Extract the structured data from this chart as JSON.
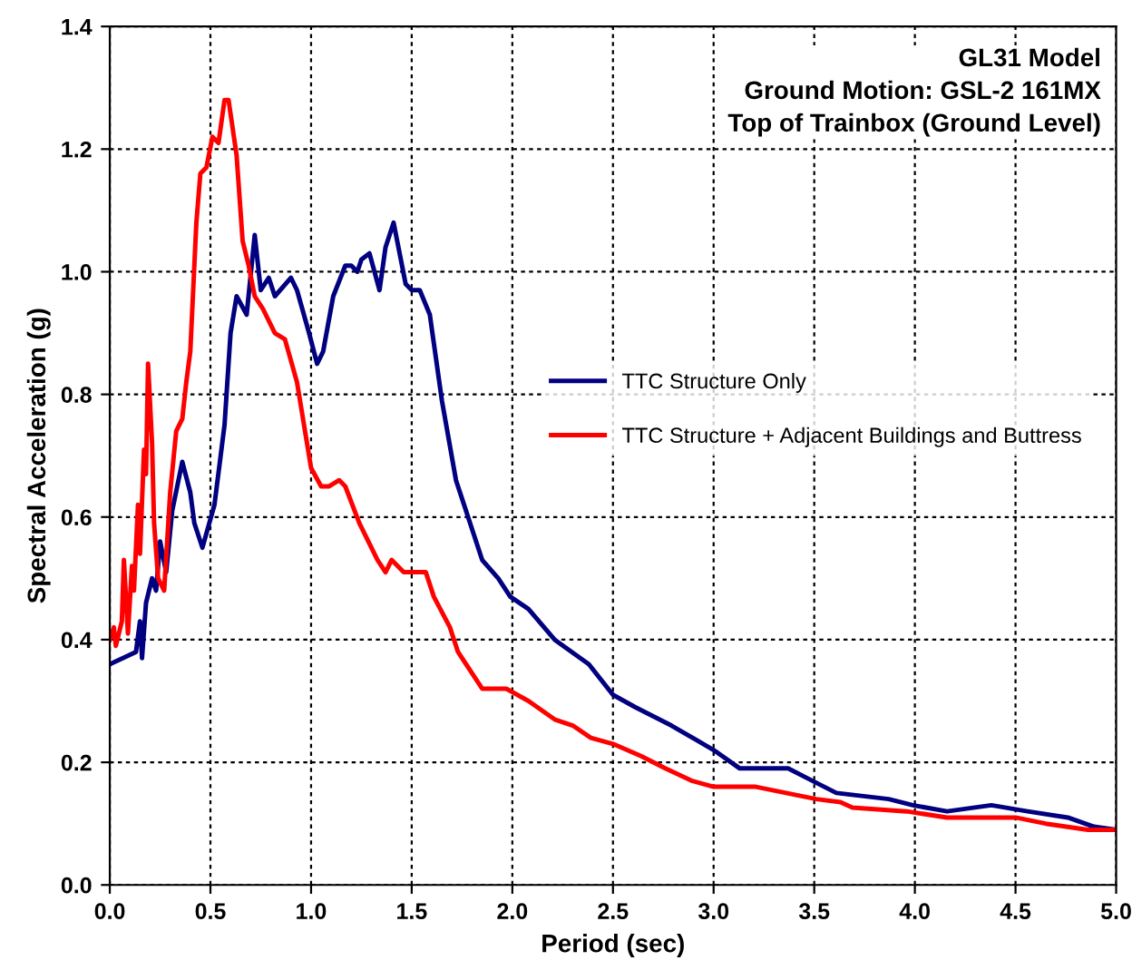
{
  "chart_data": {
    "type": "line",
    "title": "GL31 Model\nGround Motion: GSL-2 161MX\nTop of Trainbox (Ground Level)",
    "xlabel": "Period (sec)",
    "ylabel": "Spectral Acceleration (g)",
    "xlim": [
      0,
      5
    ],
    "ylim": [
      0,
      1.4
    ],
    "xticks": [
      {
        "value": 0,
        "label": "0.0"
      },
      {
        "value": 0.5,
        "label": "0.5"
      },
      {
        "value": 1,
        "label": "1.0"
      },
      {
        "value": 1.5,
        "label": "1.5"
      },
      {
        "value": 2,
        "label": "2.0"
      },
      {
        "value": 2.5,
        "label": "2.5"
      },
      {
        "value": 3,
        "label": "3.0"
      },
      {
        "value": 3.5,
        "label": "3.5"
      },
      {
        "value": 4,
        "label": "4.0"
      },
      {
        "value": 4.5,
        "label": "4.5"
      },
      {
        "value": 5,
        "label": "5.0"
      }
    ],
    "yticks": [
      {
        "value": 0,
        "label": "0.0"
      },
      {
        "value": 0.2,
        "label": "0.2"
      },
      {
        "value": 0.4,
        "label": "0.4"
      },
      {
        "value": 0.6,
        "label": "0.6"
      },
      {
        "value": 0.8,
        "label": "0.8"
      },
      {
        "value": 1,
        "label": "1.0"
      },
      {
        "value": 1.2,
        "label": "1.2"
      },
      {
        "value": 1.4,
        "label": "1.4"
      }
    ],
    "grid": true,
    "legend": "right",
    "marker": "none",
    "line_style": "solid",
    "series": [
      {
        "name": "TTC Structure Only",
        "color": "#000080",
        "x": [
          0,
          0.13,
          0.15,
          0.16,
          0.18,
          0.21,
          0.23,
          0.25,
          0.28,
          0.31,
          0.36,
          0.4,
          0.42,
          0.46,
          0.52,
          0.57,
          0.6,
          0.63,
          0.68,
          0.72,
          0.75,
          0.79,
          0.82,
          0.9,
          0.93,
          0.99,
          1.03,
          1.06,
          1.11,
          1.17,
          1.2,
          1.23,
          1.25,
          1.29,
          1.34,
          1.37,
          1.41,
          1.47,
          1.5,
          1.54,
          1.59,
          1.65,
          1.72,
          1.81,
          1.85,
          1.93,
          1.99,
          2.08,
          2.21,
          2.38,
          2.5,
          2.61,
          2.79,
          3.0,
          3.13,
          3.24,
          3.37,
          3.49,
          3.61,
          3.87,
          3.99,
          4.16,
          4.38,
          4.56,
          4.76,
          4.89,
          5.0
        ],
        "values": [
          0.36,
          0.38,
          0.43,
          0.37,
          0.46,
          0.5,
          0.48,
          0.56,
          0.51,
          0.61,
          0.69,
          0.64,
          0.59,
          0.55,
          0.62,
          0.75,
          0.9,
          0.96,
          0.93,
          1.06,
          0.97,
          0.99,
          0.96,
          0.99,
          0.97,
          0.9,
          0.85,
          0.87,
          0.96,
          1.01,
          1.01,
          1.0,
          1.02,
          1.03,
          0.97,
          1.04,
          1.08,
          0.98,
          0.97,
          0.97,
          0.93,
          0.79,
          0.66,
          0.57,
          0.53,
          0.5,
          0.47,
          0.45,
          0.4,
          0.36,
          0.31,
          0.29,
          0.26,
          0.22,
          0.19,
          0.19,
          0.19,
          0.17,
          0.15,
          0.14,
          0.13,
          0.12,
          0.13,
          0.12,
          0.11,
          0.095,
          0.09
        ]
      },
      {
        "name": "TTC Structure + Adjacent Buildings and Buttress",
        "color": "#ff0000",
        "x": [
          0,
          0.02,
          0.03,
          0.06,
          0.07,
          0.09,
          0.11,
          0.12,
          0.14,
          0.15,
          0.17,
          0.18,
          0.19,
          0.21,
          0.22,
          0.24,
          0.27,
          0.3,
          0.33,
          0.36,
          0.38,
          0.4,
          0.43,
          0.45,
          0.48,
          0.51,
          0.54,
          0.57,
          0.59,
          0.63,
          0.66,
          0.69,
          0.72,
          0.76,
          0.82,
          0.87,
          0.93,
          0.96,
          1.0,
          1.05,
          1.09,
          1.14,
          1.17,
          1.24,
          1.33,
          1.37,
          1.4,
          1.46,
          1.54,
          1.57,
          1.61,
          1.69,
          1.73,
          1.81,
          1.85,
          1.97,
          2.08,
          2.21,
          2.3,
          2.39,
          2.5,
          2.64,
          2.76,
          2.89,
          3.0,
          3.07,
          3.21,
          3.36,
          3.51,
          3.63,
          3.69,
          3.96,
          4.16,
          4.5,
          4.65,
          4.86,
          5.0
        ],
        "values": [
          0.4,
          0.42,
          0.39,
          0.43,
          0.53,
          0.41,
          0.52,
          0.48,
          0.62,
          0.54,
          0.71,
          0.67,
          0.85,
          0.72,
          0.59,
          0.5,
          0.48,
          0.64,
          0.74,
          0.76,
          0.82,
          0.87,
          1.08,
          1.16,
          1.17,
          1.22,
          1.21,
          1.28,
          1.28,
          1.19,
          1.05,
          1.01,
          0.96,
          0.94,
          0.9,
          0.89,
          0.82,
          0.76,
          0.68,
          0.65,
          0.65,
          0.66,
          0.65,
          0.59,
          0.53,
          0.51,
          0.53,
          0.51,
          0.51,
          0.51,
          0.47,
          0.42,
          0.38,
          0.34,
          0.32,
          0.32,
          0.3,
          0.27,
          0.26,
          0.24,
          0.23,
          0.21,
          0.19,
          0.17,
          0.16,
          0.16,
          0.16,
          0.15,
          0.14,
          0.135,
          0.126,
          0.12,
          0.11,
          0.11,
          0.1,
          0.09,
          0.09
        ]
      }
    ]
  }
}
